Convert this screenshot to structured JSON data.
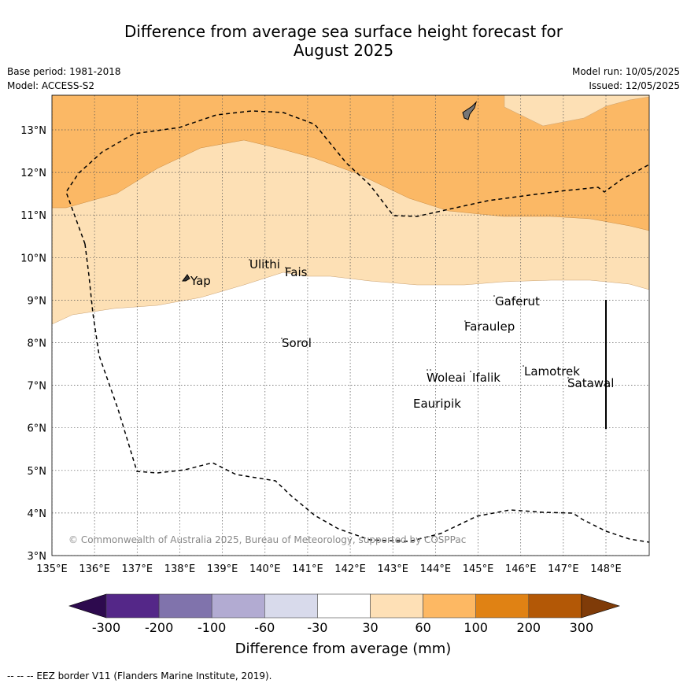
{
  "title": {
    "line1": "Difference from average sea surface height forecast for",
    "line2": "August 2025"
  },
  "meta": {
    "base_period": "Base period: 1981-2018",
    "model": "Model: ACCESS-S2",
    "model_run": "Model run: 10/05/2025",
    "issued": "Issued: 12/05/2025"
  },
  "map": {
    "lat_labels": [
      "13°N",
      "12°N",
      "11°N",
      "10°N",
      "9°N",
      "8°N",
      "7°N",
      "6°N",
      "5°N",
      "4°N",
      "3°N"
    ],
    "lon_labels": [
      "135°E",
      "136°E",
      "137°E",
      "138°E",
      "139°E",
      "140°E",
      "141°E",
      "142°E",
      "143°E",
      "144°E",
      "145°E",
      "146°E",
      "147°E",
      "148°E"
    ],
    "places": [
      {
        "name": "Yap"
      },
      {
        "name": "Ulithi"
      },
      {
        "name": "Fais"
      },
      {
        "name": "Gaferut"
      },
      {
        "name": "Faraulep"
      },
      {
        "name": "Sorol"
      },
      {
        "name": "Lamotrek"
      },
      {
        "name": "Woleai"
      },
      {
        "name": "Ifalik"
      },
      {
        "name": "Satawal"
      },
      {
        "name": "Eauripik"
      }
    ],
    "copyright": "© Commonwealth of Australia 2025, Bureau of Meteorology, supported by COSPPac",
    "colors": {
      "band_30_60": "#fde0b5",
      "band_60_100": "#fbb865",
      "background": "#ffffff",
      "eez": "#000000"
    }
  },
  "legend": {
    "ticks": [
      "-300",
      "-200",
      "-100",
      "-60",
      "-30",
      "30",
      "60",
      "100",
      "200",
      "300"
    ],
    "title": "Difference from average (mm)",
    "colors": [
      "#2d0a4e",
      "#542788",
      "#8073ac",
      "#b2abd2",
      "#d8daeb",
      "#ffffff",
      "#fee0b6",
      "#fdb863",
      "#e08214",
      "#b35806",
      "#7f3b08"
    ]
  },
  "footnote": "--  --  -- EEZ border V11 (Flanders Marine Institute, 2019)."
}
